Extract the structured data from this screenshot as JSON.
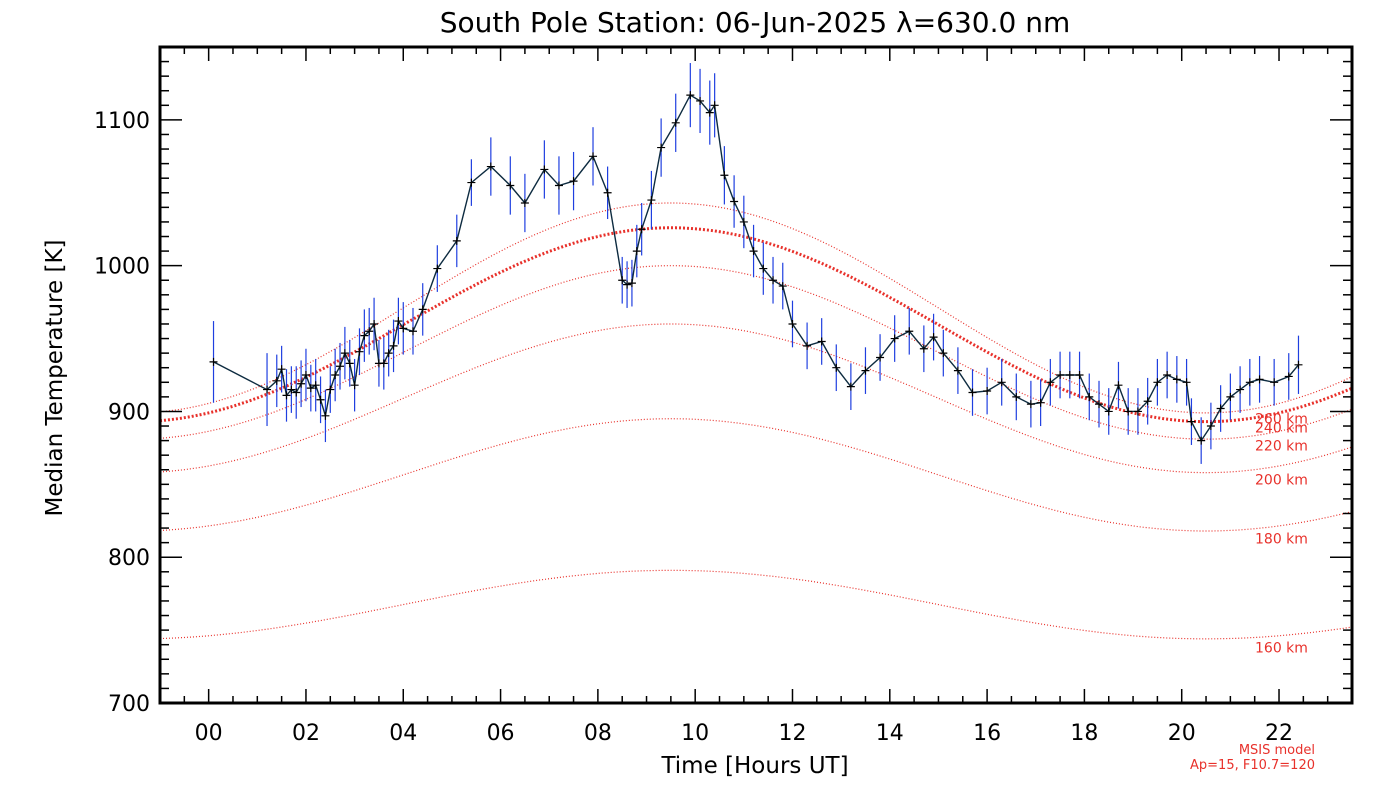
{
  "chart_data": {
    "type": "line",
    "title": "South Pole Station: 06-Jun-2025 λ=630.0 nm",
    "xlabel": "Time [Hours UT]",
    "ylabel": "Median Temperature [K]",
    "xlim": [
      -1.0,
      23.5
    ],
    "ylim": [
      700,
      1150
    ],
    "x_ticks": [
      0,
      2,
      4,
      6,
      8,
      10,
      12,
      14,
      16,
      18,
      20,
      22
    ],
    "x_tick_labels": [
      "00",
      "02",
      "04",
      "06",
      "08",
      "10",
      "12",
      "14",
      "16",
      "18",
      "20",
      "22"
    ],
    "y_ticks": [
      700,
      800,
      900,
      1000,
      1100
    ],
    "y_tick_labels": [
      "700",
      "800",
      "900",
      "1000",
      "1100"
    ],
    "footnote_line1": "MSIS model",
    "footnote_line2": "Ap=15, F10.7=120",
    "colors": {
      "data_line": "#0d2b40",
      "error_bars": "#1f3fe0",
      "markers": "#000000",
      "msis": "#e8312b"
    },
    "msis_curves": [
      {
        "label": "260 km",
        "bold": false,
        "y_start": 905,
        "y_peak": 1043,
        "y_end": 899
      },
      {
        "label": "240 km",
        "bold": true,
        "y_start": 898,
        "y_peak": 1026,
        "y_end": 893
      },
      {
        "label": "220 km",
        "bold": false,
        "y_start": 890,
        "y_peak": 1000,
        "y_end": 881
      },
      {
        "label": "200 km",
        "bold": false,
        "y_start": 860,
        "y_peak": 960,
        "y_end": 858
      },
      {
        "label": "180 km",
        "bold": false,
        "y_start": 820,
        "y_peak": 895,
        "y_end": 818
      },
      {
        "label": "160 km",
        "bold": false,
        "y_start": 746,
        "y_peak": 791,
        "y_end": 744
      }
    ],
    "series": [
      {
        "name": "Median Temperature",
        "x": [
          0.1,
          1.2,
          1.4,
          1.5,
          1.6,
          1.7,
          1.8,
          1.9,
          2.0,
          2.1,
          2.2,
          2.3,
          2.4,
          2.5,
          2.6,
          2.7,
          2.8,
          2.9,
          3.0,
          3.1,
          3.2,
          3.3,
          3.4,
          3.5,
          3.6,
          3.7,
          3.8,
          3.9,
          4.0,
          4.2,
          4.4,
          4.7,
          5.1,
          5.4,
          5.8,
          6.2,
          6.5,
          6.9,
          7.2,
          7.5,
          7.9,
          8.2,
          8.5,
          8.6,
          8.7,
          8.8,
          8.9,
          9.1,
          9.3,
          9.6,
          9.9,
          10.1,
          10.3,
          10.4,
          10.6,
          10.8,
          11.0,
          11.2,
          11.4,
          11.6,
          11.8,
          12.0,
          12.3,
          12.6,
          12.9,
          13.2,
          13.5,
          13.8,
          14.1,
          14.4,
          14.7,
          14.9,
          15.1,
          15.4,
          15.7,
          16.0,
          16.3,
          16.6,
          16.9,
          17.1,
          17.3,
          17.5,
          17.7,
          17.9,
          18.1,
          18.3,
          18.5,
          18.7,
          18.9,
          19.1,
          19.3,
          19.5,
          19.7,
          19.9,
          20.1,
          20.2,
          20.4,
          20.6,
          20.8,
          21.0,
          21.2,
          21.4,
          21.6,
          21.9,
          22.2,
          22.4
        ],
        "y": [
          934,
          915,
          921,
          929,
          911,
          915,
          913,
          919,
          925,
          916,
          918,
          908,
          897,
          915,
          925,
          931,
          940,
          933,
          918,
          941,
          952,
          955,
          960,
          933,
          933,
          940,
          945,
          962,
          957,
          955,
          970,
          998,
          1017,
          1057,
          1068,
          1055,
          1043,
          1066,
          1055,
          1058,
          1075,
          1050,
          990,
          987,
          988,
          1010,
          1025,
          1045,
          1081,
          1098,
          1117,
          1113,
          1105,
          1110,
          1062,
          1044,
          1030,
          1010,
          998,
          990,
          986,
          960,
          945,
          948,
          930,
          917,
          928,
          937,
          950,
          955,
          943,
          951,
          940,
          928,
          913,
          914,
          920,
          910,
          905,
          906,
          920,
          925,
          925,
          925,
          910,
          905,
          900,
          918,
          900,
          900,
          907,
          920,
          925,
          922,
          920,
          893,
          880,
          890,
          902,
          910,
          915,
          920,
          922,
          920,
          924,
          932
        ],
        "err": [
          28,
          25,
          18,
          16,
          18,
          16,
          18,
          16,
          18,
          16,
          18,
          16,
          18,
          16,
          18,
          16,
          18,
          16,
          18,
          16,
          18,
          16,
          18,
          16,
          18,
          16,
          18,
          16,
          18,
          16,
          18,
          16,
          18,
          16,
          20,
          20,
          20,
          20,
          20,
          20,
          20,
          18,
          16,
          16,
          16,
          18,
          18,
          20,
          20,
          20,
          22,
          22,
          22,
          22,
          20,
          18,
          18,
          18,
          18,
          16,
          16,
          16,
          16,
          16,
          16,
          16,
          16,
          16,
          16,
          16,
          16,
          16,
          16,
          16,
          16,
          16,
          16,
          16,
          16,
          16,
          16,
          16,
          16,
          16,
          16,
          16,
          16,
          16,
          16,
          16,
          16,
          16,
          16,
          16,
          16,
          16,
          16,
          16,
          16,
          16,
          16,
          16,
          16,
          16,
          16,
          20
        ]
      }
    ]
  }
}
